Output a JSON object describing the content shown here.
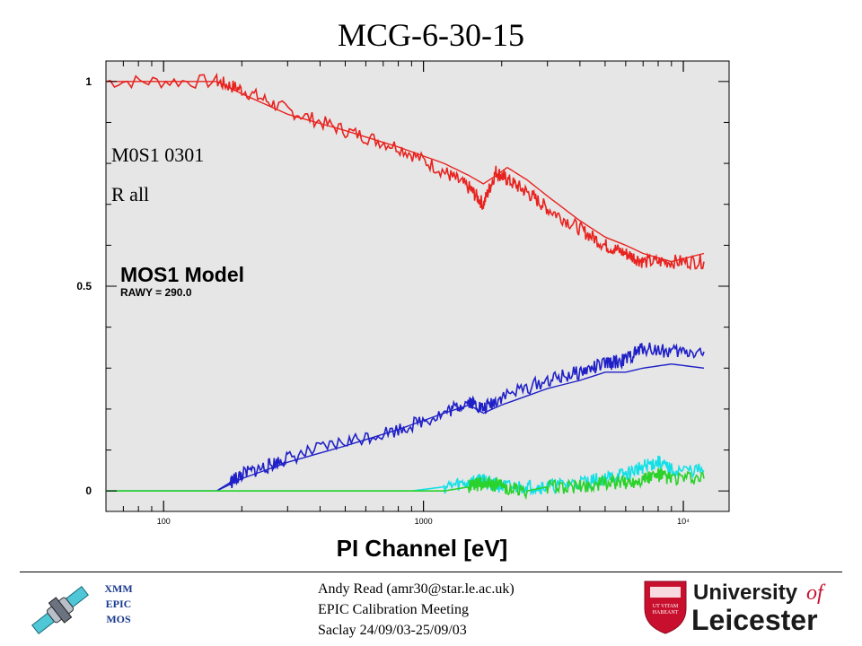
{
  "slide": {
    "title": "MCG-6-30-15",
    "overlay_lines": [
      "M0S1 0301",
      "R all"
    ],
    "mission_lines": [
      "XMM",
      "EPIC",
      "MOS"
    ],
    "footer_lines": [
      "Andy Read (amr30@star.le.ac.uk)",
      "EPIC Calibration Meeting",
      "Saclay 24/09/03-25/09/03"
    ],
    "university": {
      "line1": "University",
      "of": "of",
      "line2": "Leicester",
      "crest_motto": [
        "UT VITAM",
        "HABEANT"
      ]
    }
  },
  "chart_data": {
    "type": "line",
    "title": "MOS1 Model",
    "subtitle": "RAWY = 290.0",
    "xlabel": "PI Channel [eV]",
    "ylabel": "",
    "xscale": "log",
    "xlim": [
      60,
      15000
    ],
    "ylim": [
      -0.05,
      1.05
    ],
    "xticks": [
      {
        "value": 100,
        "label": "100"
      },
      {
        "value": 1000,
        "label": "1000"
      },
      {
        "value": 10000,
        "label": "10⁴"
      }
    ],
    "yticks": [
      {
        "value": 0,
        "label": "0"
      },
      {
        "value": 0.5,
        "label": "0.5"
      },
      {
        "value": 1,
        "label": "1"
      }
    ],
    "grid": false,
    "legend": "none",
    "background": "#e6e6e6",
    "series": [
      {
        "color": "#e8231f",
        "style": "noisy",
        "x": [
          60,
          160,
          200,
          300,
          500,
          800,
          1200,
          1500,
          1700,
          1900,
          2100,
          2500,
          3000,
          4000,
          5000,
          6000,
          7000,
          9000,
          12000
        ],
        "y": [
          1,
          1,
          0.98,
          0.93,
          0.88,
          0.84,
          0.78,
          0.74,
          0.7,
          0.78,
          0.76,
          0.73,
          0.69,
          0.64,
          0.6,
          0.58,
          0.56,
          0.56,
          0.56
        ]
      },
      {
        "color": "#e8231f",
        "style": "smooth",
        "x": [
          60,
          160,
          200,
          300,
          500,
          800,
          1200,
          1500,
          1700,
          1900,
          2100,
          2500,
          3000,
          4000,
          5000,
          6000,
          7000,
          9000,
          12000
        ],
        "y": [
          1,
          1,
          0.97,
          0.92,
          0.88,
          0.84,
          0.8,
          0.77,
          0.75,
          0.77,
          0.79,
          0.76,
          0.72,
          0.66,
          0.62,
          0.6,
          0.58,
          0.56,
          0.58
        ]
      },
      {
        "color": "#2020c8",
        "style": "noisy",
        "x": [
          60,
          160,
          180,
          200,
          250,
          300,
          500,
          800,
          1200,
          1500,
          1700,
          2000,
          3000,
          4000,
          5000,
          6000,
          7000,
          9000,
          12000
        ],
        "y": [
          0,
          0,
          0.02,
          0.04,
          0.06,
          0.08,
          0.12,
          0.15,
          0.19,
          0.22,
          0.2,
          0.23,
          0.27,
          0.29,
          0.31,
          0.32,
          0.35,
          0.34,
          0.34
        ]
      },
      {
        "color": "#2020c8",
        "style": "smooth",
        "x": [
          60,
          160,
          200,
          300,
          500,
          800,
          1200,
          1500,
          1700,
          2000,
          3000,
          4000,
          5000,
          6000,
          7000,
          9000,
          12000
        ],
        "y": [
          0,
          0,
          0.03,
          0.07,
          0.11,
          0.15,
          0.19,
          0.21,
          0.19,
          0.21,
          0.25,
          0.27,
          0.29,
          0.29,
          0.3,
          0.31,
          0.3
        ]
      },
      {
        "color": "#12e0e6",
        "style": "noisy",
        "x": [
          60,
          500,
          900,
          1200,
          1500,
          1700,
          1800,
          2000,
          2500,
          3000,
          4000,
          5000,
          6000,
          7000,
          8000,
          9000,
          12000
        ],
        "y": [
          0,
          0,
          0,
          0.01,
          0.02,
          0.03,
          0.02,
          0.01,
          0.01,
          0.01,
          0.02,
          0.03,
          0.04,
          0.06,
          0.07,
          0.05,
          0.05
        ]
      },
      {
        "color": "#2ad22a",
        "style": "noisy",
        "x": [
          60,
          800,
          1200,
          1500,
          1700,
          1800,
          2000,
          2500,
          3000,
          4000,
          5000,
          6000,
          7000,
          8000,
          9000,
          12000
        ],
        "y": [
          0,
          0,
          0,
          0.01,
          0.02,
          0.02,
          0.01,
          0,
          0.01,
          0.01,
          0.02,
          0.02,
          0.03,
          0.04,
          0.03,
          0.03
        ]
      }
    ]
  }
}
